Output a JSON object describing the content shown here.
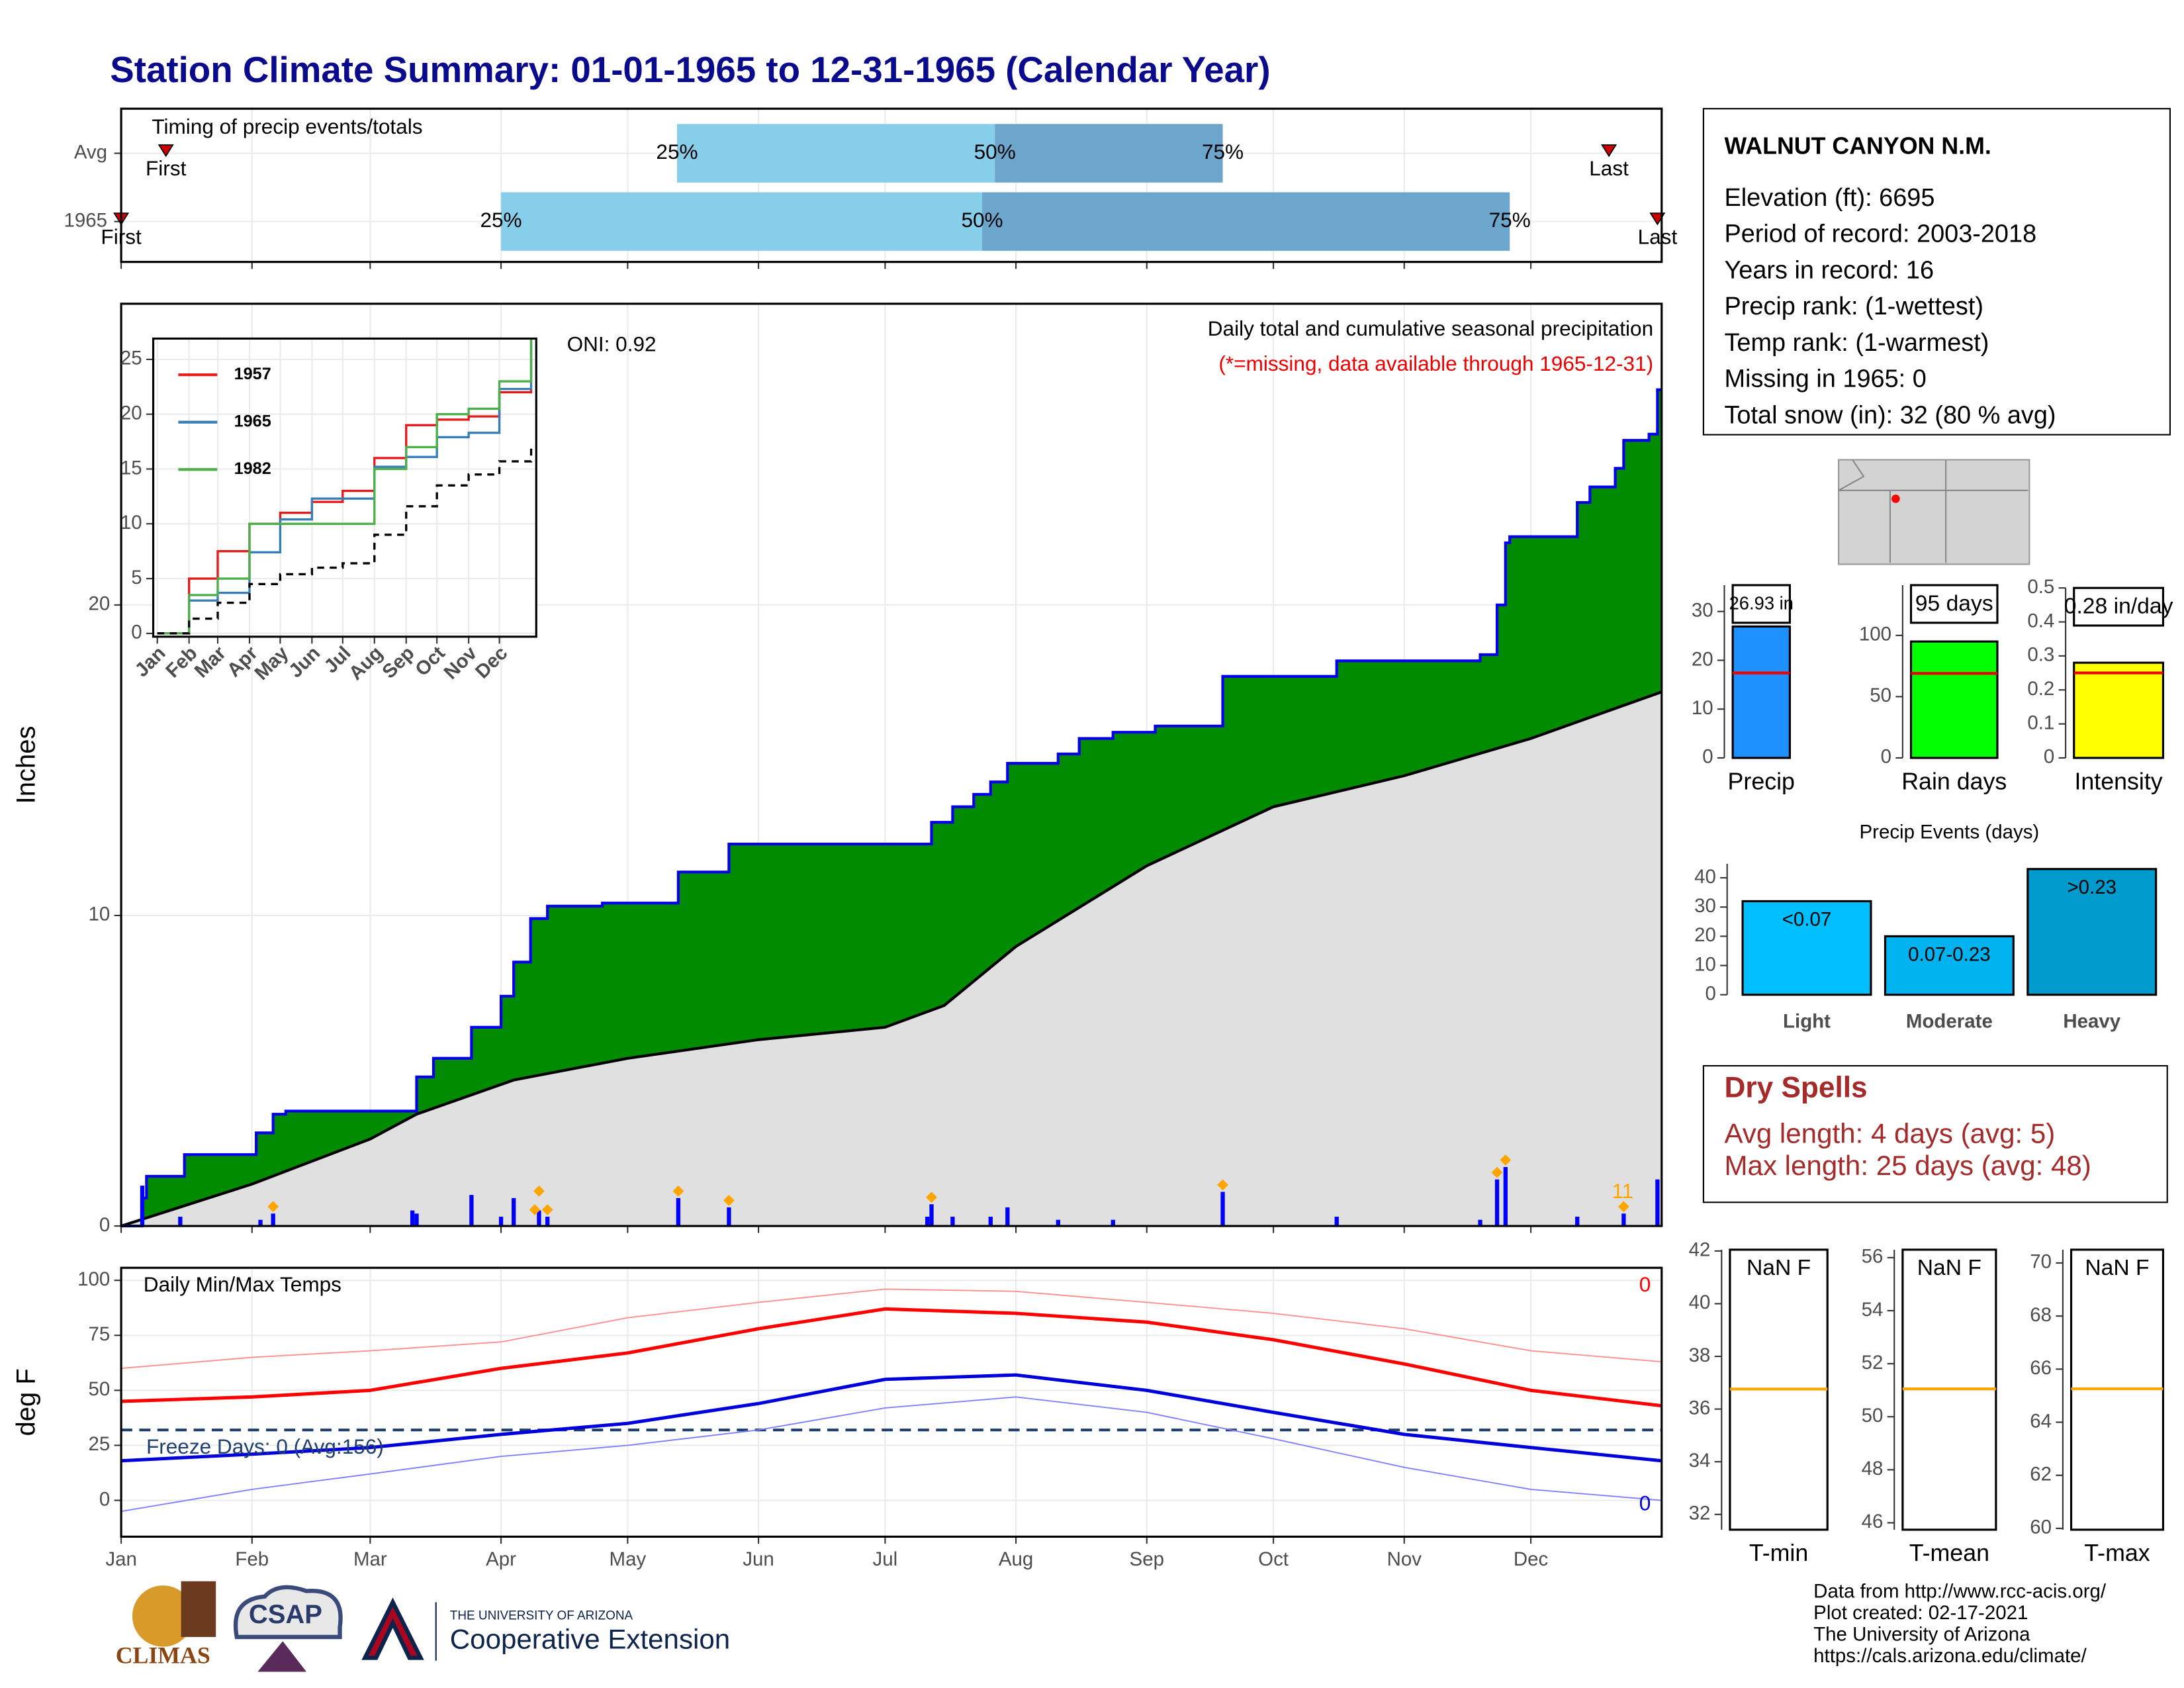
{
  "title": "Station Climate Summary: 01-01-1965 to 12-31-1965 (Calendar Year)",
  "chart_data": [
    {
      "type": "timeline",
      "label": "Timing of precip events/totals",
      "xlim": [
        0,
        365
      ],
      "xticks": [
        0,
        31,
        59,
        90,
        120,
        151,
        181,
        212,
        243,
        273,
        304,
        334
      ],
      "quantile_labels": [
        "25%",
        "50%",
        "75%"
      ],
      "marker_labels": [
        "First",
        "Last"
      ],
      "colors": [
        "#87ceeb",
        "#6ca6cd"
      ],
      "marker_color": "#cc0000",
      "rows": [
        {
          "name": "Avg",
          "first": 10.6,
          "last": 352.5,
          "q25": 131.7,
          "q50": 207,
          "q75": 261
        },
        {
          "name": "1965",
          "first": 0,
          "last": 364,
          "q25": 90,
          "q50": 204,
          "q75": 329
        }
      ]
    },
    {
      "type": "cumulative",
      "subtitle": "Daily total and cumulative seasonal precipitation",
      "note": "(*=missing, data available through 1965-12-31)",
      "note_color": "#ee0000",
      "oni": "ONI: 0.92",
      "y_label": "Inches",
      "xlim": [
        0,
        365
      ],
      "ylim": [
        0,
        29.7
      ],
      "yticks": [
        0,
        10,
        20
      ],
      "xticks": [
        0,
        31,
        59,
        90,
        120,
        151,
        181,
        212,
        243,
        273,
        304,
        334
      ],
      "cumulative": {
        "color": "#0000ee",
        "fill": "#008b00",
        "x": [
          0,
          5,
          6,
          15,
          32,
          36,
          39,
          70,
          74,
          83,
          90,
          93,
          97,
          101,
          114,
          132,
          144,
          192,
          197,
          202,
          206,
          210,
          222,
          227,
          235,
          245,
          261,
          288,
          322,
          326,
          328,
          329,
          345,
          348,
          354,
          356,
          362,
          364
        ],
        "values": [
          0,
          0.9,
          1.6,
          2.3,
          3.0,
          3.6,
          3.7,
          4.8,
          5.4,
          6.4,
          7.4,
          8.5,
          9.9,
          10.3,
          10.4,
          11.4,
          12.3,
          13.0,
          13.5,
          13.9,
          14.3,
          14.9,
          15.2,
          15.7,
          15.9,
          16.1,
          17.7,
          18.2,
          18.4,
          20.0,
          22.0,
          22.2,
          23.3,
          23.8,
          24.4,
          25.3,
          25.5,
          26.93
        ]
      },
      "average": {
        "color": "#000000",
        "fill": "#e0e0e0",
        "x": [
          0,
          31,
          59,
          70,
          93,
          120,
          151,
          181,
          195,
          212,
          243,
          273,
          304,
          334,
          365
        ],
        "values": [
          0,
          1.35,
          2.8,
          3.6,
          4.7,
          5.4,
          6.0,
          6.4,
          7.1,
          9.0,
          11.6,
          13.5,
          14.5,
          15.7,
          17.2
        ]
      },
      "daily": {
        "color": "#0000ff",
        "x": [
          5,
          14,
          33,
          36,
          69,
          70,
          83,
          90,
          93,
          99,
          101,
          132,
          144,
          191,
          192,
          197,
          206,
          210,
          222,
          235,
          261,
          288,
          322,
          326,
          328,
          345,
          356,
          364
        ],
        "values": [
          1.3,
          0.3,
          0.2,
          0.4,
          0.5,
          0.4,
          1.0,
          0.3,
          0.9,
          0.5,
          0.3,
          0.9,
          0.6,
          0.3,
          0.7,
          0.3,
          0.3,
          0.6,
          0.2,
          0.2,
          1.1,
          0.3,
          0.2,
          1.5,
          1.9,
          0.3,
          0.4,
          1.5
        ]
      },
      "markers": {
        "color": "#ffa500",
        "x": [
          36,
          98,
          99,
          101,
          132,
          144,
          192,
          261,
          326,
          328,
          356
        ],
        "values": [
          0.4,
          0.3,
          0.9,
          0.3,
          0.9,
          0.6,
          0.7,
          1.1,
          1.5,
          1.9,
          0.4
        ]
      },
      "marker_count": 11
    },
    {
      "type": "line",
      "step": true,
      "xlim": [
        -4,
        370
      ],
      "ylim": [
        -0.3,
        26.9
      ],
      "yticks": [
        0,
        5,
        10,
        15,
        20,
        25
      ],
      "xticks": [
        {
          "value": 0,
          "label": "Jan"
        },
        {
          "value": 31,
          "label": "Feb"
        },
        {
          "value": 59,
          "label": "Mar"
        },
        {
          "value": 90,
          "label": "Apr"
        },
        {
          "value": 120,
          "label": "May"
        },
        {
          "value": 151,
          "label": "Jun"
        },
        {
          "value": 181,
          "label": "Jul"
        },
        {
          "value": 212,
          "label": "Aug"
        },
        {
          "value": 243,
          "label": "Sep"
        },
        {
          "value": 273,
          "label": "Oct"
        },
        {
          "value": 304,
          "label": "Nov"
        },
        {
          "value": 334,
          "label": "Dec"
        }
      ],
      "x": [
        0,
        31,
        59,
        90,
        120,
        151,
        181,
        212,
        243,
        273,
        304,
        334,
        365
      ],
      "series": [
        {
          "name": "1957",
          "color": "#e41a1c",
          "values": [
            0,
            5,
            7.5,
            10,
            11,
            12,
            13,
            16,
            19,
            19.5,
            19.8,
            22,
            22.3
          ]
        },
        {
          "name": "1965",
          "color": "#377eb8",
          "values": [
            0,
            3,
            3.7,
            7.4,
            10.4,
            12.3,
            12.3,
            15.2,
            16.1,
            17.9,
            18.3,
            22.3,
            26.9
          ]
        },
        {
          "name": "1982",
          "color": "#4daf4a",
          "values": [
            0,
            3.5,
            5,
            10,
            10,
            10,
            10,
            15,
            17,
            20,
            20.5,
            23,
            26.8
          ]
        },
        {
          "color": "#000000",
          "dash": true,
          "values": [
            0,
            1.35,
            2.8,
            4.5,
            5.4,
            6,
            6.4,
            9,
            11.6,
            13.5,
            14.5,
            15.7,
            17.2
          ]
        }
      ]
    },
    {
      "type": "line",
      "label": "Daily Min/Max Temps",
      "y_label": "deg F",
      "xlim": [
        0,
        365
      ],
      "ylim": [
        -16.5,
        105.7
      ],
      "yticks": [
        0,
        25,
        50,
        75,
        100
      ],
      "xticks": [
        {
          "value": 0,
          "label": "Jan"
        },
        {
          "value": 31,
          "label": "Feb"
        },
        {
          "value": 59,
          "label": "Mar"
        },
        {
          "value": 90,
          "label": "Apr"
        },
        {
          "value": 120,
          "label": "May"
        },
        {
          "value": 151,
          "label": "Jun"
        },
        {
          "value": 181,
          "label": "Jul"
        },
        {
          "value": 212,
          "label": "Aug"
        },
        {
          "value": 243,
          "label": "Sep"
        },
        {
          "value": 273,
          "label": "Oct"
        },
        {
          "value": 304,
          "label": "Nov"
        },
        {
          "value": 334,
          "label": "Dec"
        }
      ],
      "x": [
        0,
        31,
        59,
        90,
        120,
        151,
        181,
        212,
        243,
        273,
        304,
        334,
        365
      ],
      "series": [
        {
          "color": "#ff9090",
          "width": 0.9,
          "values": [
            60,
            65,
            68,
            72,
            83,
            90,
            96,
            95,
            90,
            85,
            78,
            68,
            63
          ]
        },
        {
          "color": "#8080ff",
          "width": 0.9,
          "values": [
            -5,
            5,
            12,
            20,
            25,
            32,
            42,
            47,
            40,
            28,
            15,
            5,
            0
          ]
        },
        {
          "color": "#ff0000",
          "width": 2.4,
          "values": [
            45,
            47,
            50,
            60,
            67,
            78,
            87,
            85,
            81,
            73,
            62,
            50,
            43
          ]
        },
        {
          "color": "#0000dd",
          "width": 2.4,
          "values": [
            18,
            21,
            24,
            30,
            35,
            44,
            55,
            57,
            50,
            40,
            30,
            24,
            18
          ]
        }
      ],
      "reference": 32,
      "reference_color": "#1f3f6f",
      "reference_label": "Freeze Days: 0 (Avg:156)",
      "max_count": 0,
      "min_count": 0
    },
    {
      "type": "bar",
      "categories": [
        "Precip"
      ],
      "values": [
        26.93
      ],
      "value_labels": [
        "26.93 in"
      ],
      "colors": [
        "#1e90ff"
      ],
      "average": 17.4,
      "average_color": "#ee0000",
      "ylim": [
        0,
        35.4
      ],
      "yticks": [
        0,
        10,
        20,
        30
      ]
    },
    {
      "type": "bar",
      "categories": [
        "Rain days"
      ],
      "values": [
        95
      ],
      "value_labels": [
        "95 days"
      ],
      "colors": [
        "#00ff00"
      ],
      "average": 69,
      "average_color": "#ee0000",
      "ylim": [
        0,
        141
      ],
      "yticks": [
        0,
        50,
        100
      ]
    },
    {
      "type": "bar",
      "categories": [
        "Intensity"
      ],
      "values": [
        0.28
      ],
      "value_labels": [
        "0.28 in/day"
      ],
      "colors": [
        "#ffff00"
      ],
      "average": 0.25,
      "average_color": "#ee0000",
      "ylim": [
        0,
        0.5
      ],
      "yticks": [
        0,
        0.1,
        0.2,
        0.3,
        0.4,
        0.5
      ]
    },
    {
      "type": "bar",
      "title": "Precip Events (days)",
      "categories": [
        "Light",
        "Moderate",
        "Heavy"
      ],
      "values": [
        32,
        20,
        43
      ],
      "value_labels": [
        "<0.07",
        "0.07-0.23",
        ">0.23"
      ],
      "colors": [
        "#00bfff",
        "#00b2ee",
        "#009acd"
      ],
      "ylim": [
        0,
        44.8
      ],
      "yticks": [
        0,
        10,
        20,
        30,
        40
      ]
    },
    {
      "type": "bar",
      "categories": [
        "T-min"
      ],
      "values": [
        null
      ],
      "value_labels": [
        "NaN F"
      ],
      "average": 36.76,
      "average_color": "#ffa500",
      "ylim": [
        31.42,
        42.05
      ],
      "yticks": [
        32,
        34,
        36,
        38,
        40,
        42
      ]
    },
    {
      "type": "bar",
      "categories": [
        "T-mean"
      ],
      "values": [
        null
      ],
      "value_labels": [
        "NaN F"
      ],
      "average": 51.05,
      "average_color": "#ffa500",
      "ylim": [
        45.74,
        56.3
      ],
      "yticks": [
        46,
        48,
        50,
        52,
        54,
        56
      ]
    },
    {
      "type": "bar",
      "categories": [
        "T-max"
      ],
      "values": [
        null
      ],
      "value_labels": [
        "NaN F"
      ],
      "average": 65.26,
      "average_color": "#ffa500",
      "ylim": [
        59.95,
        70.5
      ],
      "yticks": [
        60,
        62,
        64,
        66,
        68,
        70
      ]
    }
  ],
  "station": {
    "name": "WALNUT CANYON N.M.",
    "lines": [
      "Elevation (ft): 6695",
      "Period of record: 2003-2018",
      "Years in record: 16",
      "Precip rank:  (1-wettest)",
      "Temp rank:  (1-warmest)",
      "Missing in 1965: 0",
      "Total snow (in): 32 (80 % avg)"
    ]
  },
  "dry_spells": {
    "title": "Dry Spells",
    "lines": [
      "Avg length: 4 days (avg: 5)",
      "Max length: 25 days (avg: 48)"
    ]
  },
  "footer": [
    "Data from http://www.rcc-acis.org/",
    "Plot created: 02-17-2021",
    "The University of Arizona",
    "https://cals.arizona.edu/climate/"
  ],
  "logos": {
    "climas": "CLIMAS",
    "csap": "CSAP",
    "university": "THE UNIVERSITY OF ARIZONA",
    "extension": "Cooperative Extension"
  }
}
